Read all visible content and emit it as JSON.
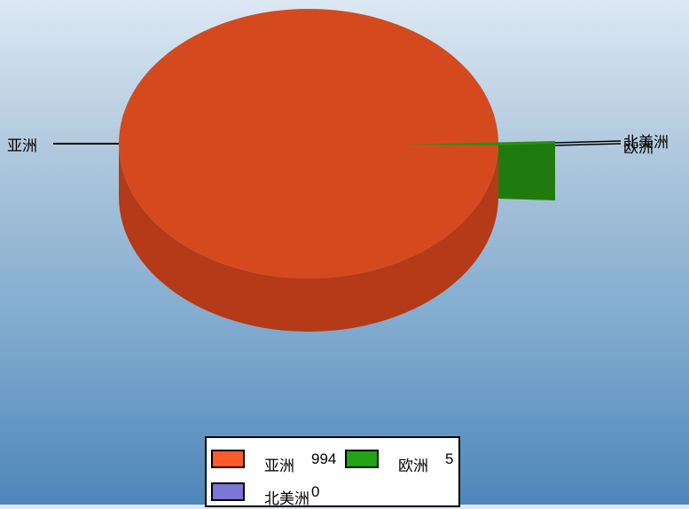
{
  "chart_data": {
    "type": "pie",
    "title": "",
    "categories": [
      "亚洲",
      "欧洲",
      "北美洲"
    ],
    "values": [
      994,
      5,
      0
    ],
    "colors": [
      "#d44a1e",
      "#1f7b0d",
      "#7b76d8"
    ],
    "legend_colors": [
      "#ff5a2b",
      "#22a314",
      "#7b76d8"
    ],
    "legend_position": "bottom",
    "style_3d": true
  },
  "legend": {
    "items": [
      {
        "name": "亚洲",
        "value": "994"
      },
      {
        "name": "欧洲",
        "value": "5"
      },
      {
        "name": "北美洲",
        "value": "0"
      }
    ]
  }
}
